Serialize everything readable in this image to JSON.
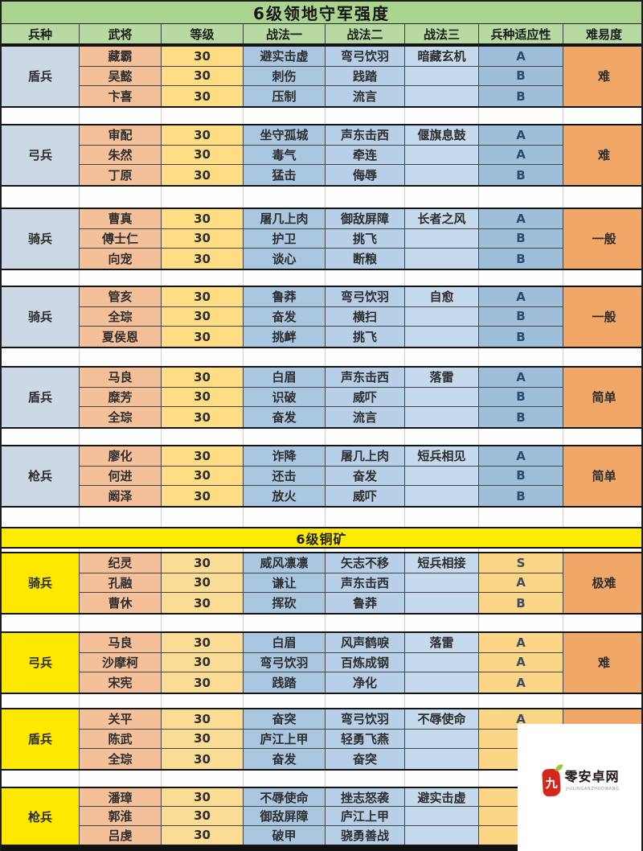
{
  "title": "6级领地守军强度",
  "columns": [
    "兵种",
    "武将",
    "等级",
    "战法一",
    "战法二",
    "战法三",
    "兵种适应性",
    "难易度"
  ],
  "divider": {
    "label": "6级铜矿"
  },
  "groups": [
    {
      "troop": "盾兵",
      "difficulty": "难",
      "rows": [
        {
          "general": "藏霸",
          "level": "30",
          "tactic1": "避实击虚",
          "tactic2": "弯弓饮羽",
          "tactic3": "暗藏玄机",
          "adapt": "A"
        },
        {
          "general": "吴懿",
          "level": "30",
          "tactic1": "刺伤",
          "tactic2": "践踏",
          "tactic3": "",
          "adapt": "B"
        },
        {
          "general": "卞喜",
          "level": "30",
          "tactic1": "压制",
          "tactic2": "流言",
          "tactic3": "",
          "adapt": "B"
        }
      ]
    },
    {
      "troop": "弓兵",
      "difficulty": "难",
      "rows": [
        {
          "general": "审配",
          "level": "30",
          "tactic1": "坐守孤城",
          "tactic2": "声东击西",
          "tactic3": "偃旗息鼓",
          "adapt": "A"
        },
        {
          "general": "朱然",
          "level": "30",
          "tactic1": "毒气",
          "tactic2": "牵连",
          "tactic3": "",
          "adapt": "A"
        },
        {
          "general": "丁原",
          "level": "30",
          "tactic1": "猛击",
          "tactic2": "侮辱",
          "tactic3": "",
          "adapt": "B"
        }
      ]
    },
    {
      "troop": "骑兵",
      "difficulty": "一般",
      "rows": [
        {
          "general": "曹真",
          "level": "30",
          "tactic1": "屠几上肉",
          "tactic2": "御敌屏障",
          "tactic3": "长者之风",
          "adapt": "A"
        },
        {
          "general": "傅士仁",
          "level": "30",
          "tactic1": "护卫",
          "tactic2": "挑飞",
          "tactic3": "",
          "adapt": "B"
        },
        {
          "general": "向宠",
          "level": "30",
          "tactic1": "谈心",
          "tactic2": "断粮",
          "tactic3": "",
          "adapt": "B"
        }
      ]
    },
    {
      "troop": "骑兵",
      "difficulty": "一般",
      "rows": [
        {
          "general": "管亥",
          "level": "30",
          "tactic1": "鲁莽",
          "tactic2": "弯弓饮羽",
          "tactic3": "自愈",
          "adapt": "A"
        },
        {
          "general": "全琮",
          "level": "30",
          "tactic1": "奋发",
          "tactic2": "横扫",
          "tactic3": "",
          "adapt": "B"
        },
        {
          "general": "夏侯恩",
          "level": "30",
          "tactic1": "挑衅",
          "tactic2": "挑飞",
          "tactic3": "",
          "adapt": "B"
        }
      ]
    },
    {
      "troop": "盾兵",
      "difficulty": "简单",
      "rows": [
        {
          "general": "马良",
          "level": "30",
          "tactic1": "白眉",
          "tactic2": "声东击西",
          "tactic3": "落雷",
          "adapt": "A"
        },
        {
          "general": "糜芳",
          "level": "30",
          "tactic1": "识破",
          "tactic2": "威吓",
          "tactic3": "",
          "adapt": "B"
        },
        {
          "general": "全琮",
          "level": "30",
          "tactic1": "奋发",
          "tactic2": "流言",
          "tactic3": "",
          "adapt": "B"
        }
      ]
    },
    {
      "troop": "枪兵",
      "difficulty": "简单",
      "rows": [
        {
          "general": "廖化",
          "level": "30",
          "tactic1": "诈降",
          "tactic2": "屠几上肉",
          "tactic3": "短兵相见",
          "adapt": "A"
        },
        {
          "general": "何进",
          "level": "30",
          "tactic1": "还击",
          "tactic2": "奋发",
          "tactic3": "",
          "adapt": "B"
        },
        {
          "general": "阚泽",
          "level": "30",
          "tactic1": "放火",
          "tactic2": "威吓",
          "tactic3": "",
          "adapt": "B"
        }
      ]
    },
    {
      "troop": "骑兵",
      "difficulty": "极难",
      "rows": [
        {
          "general": "纪灵",
          "level": "30",
          "tactic1": "威风凛凛",
          "tactic2": "矢志不移",
          "tactic3": "短兵相接",
          "adapt": "S"
        },
        {
          "general": "孔融",
          "level": "30",
          "tactic1": "谦让",
          "tactic2": "声东击西",
          "tactic3": "",
          "adapt": "A"
        },
        {
          "general": "曹休",
          "level": "30",
          "tactic1": "挥砍",
          "tactic2": "鲁莽",
          "tactic3": "",
          "adapt": "B"
        }
      ]
    },
    {
      "troop": "弓兵",
      "difficulty": "难",
      "rows": [
        {
          "general": "马良",
          "level": "30",
          "tactic1": "白眉",
          "tactic2": "风声鹤唳",
          "tactic3": "落雷",
          "adapt": "A"
        },
        {
          "general": "沙摩柯",
          "level": "30",
          "tactic1": "弯弓饮羽",
          "tactic2": "百炼成钢",
          "tactic3": "",
          "adapt": "A"
        },
        {
          "general": "宋宪",
          "level": "30",
          "tactic1": "践踏",
          "tactic2": "净化",
          "tactic3": "",
          "adapt": "A"
        }
      ]
    },
    {
      "troop": "盾兵",
      "difficulty": "",
      "rows": [
        {
          "general": "关平",
          "level": "30",
          "tactic1": "奋突",
          "tactic2": "弯弓饮羽",
          "tactic3": "不辱使命",
          "adapt": "A"
        },
        {
          "general": "陈武",
          "level": "30",
          "tactic1": "庐江上甲",
          "tactic2": "轻勇飞燕",
          "tactic3": "",
          "adapt": ""
        },
        {
          "general": "全琮",
          "level": "30",
          "tactic1": "奋发",
          "tactic2": "奋突",
          "tactic3": "",
          "adapt": ""
        }
      ]
    },
    {
      "troop": "枪兵",
      "difficulty": "",
      "rows": [
        {
          "general": "潘璋",
          "level": "30",
          "tactic1": "不辱使命",
          "tactic2": "挫志怒袭",
          "tactic3": "避实击虚",
          "adapt": ""
        },
        {
          "general": "郭淮",
          "level": "30",
          "tactic1": "御敌屏障",
          "tactic2": "庐江上甲",
          "tactic3": "",
          "adapt": ""
        },
        {
          "general": "吕虔",
          "level": "30",
          "tactic1": "破甲",
          "tactic2": "骁勇善战",
          "tactic3": "",
          "adapt": ""
        }
      ]
    }
  ],
  "watermark": {
    "seal_char": "九",
    "site_name": "零安卓网",
    "subtext": "JIULINGANZHUOWANG"
  },
  "colors": {
    "title_green": "#a8d48d",
    "header_green": "#b6daa1",
    "troop_blue": "#ccd8e6",
    "general_salmon": "#f4c09a",
    "level_yellow": "#fedd85",
    "tactic_blue": "#a9c7e1",
    "adapt_blue": "#9fbeda",
    "difficulty_orange": "#f1a768",
    "section2_yellow": "#fde800",
    "divider_yellow": "#fdeb00",
    "seal_red": "#d6271d"
  }
}
